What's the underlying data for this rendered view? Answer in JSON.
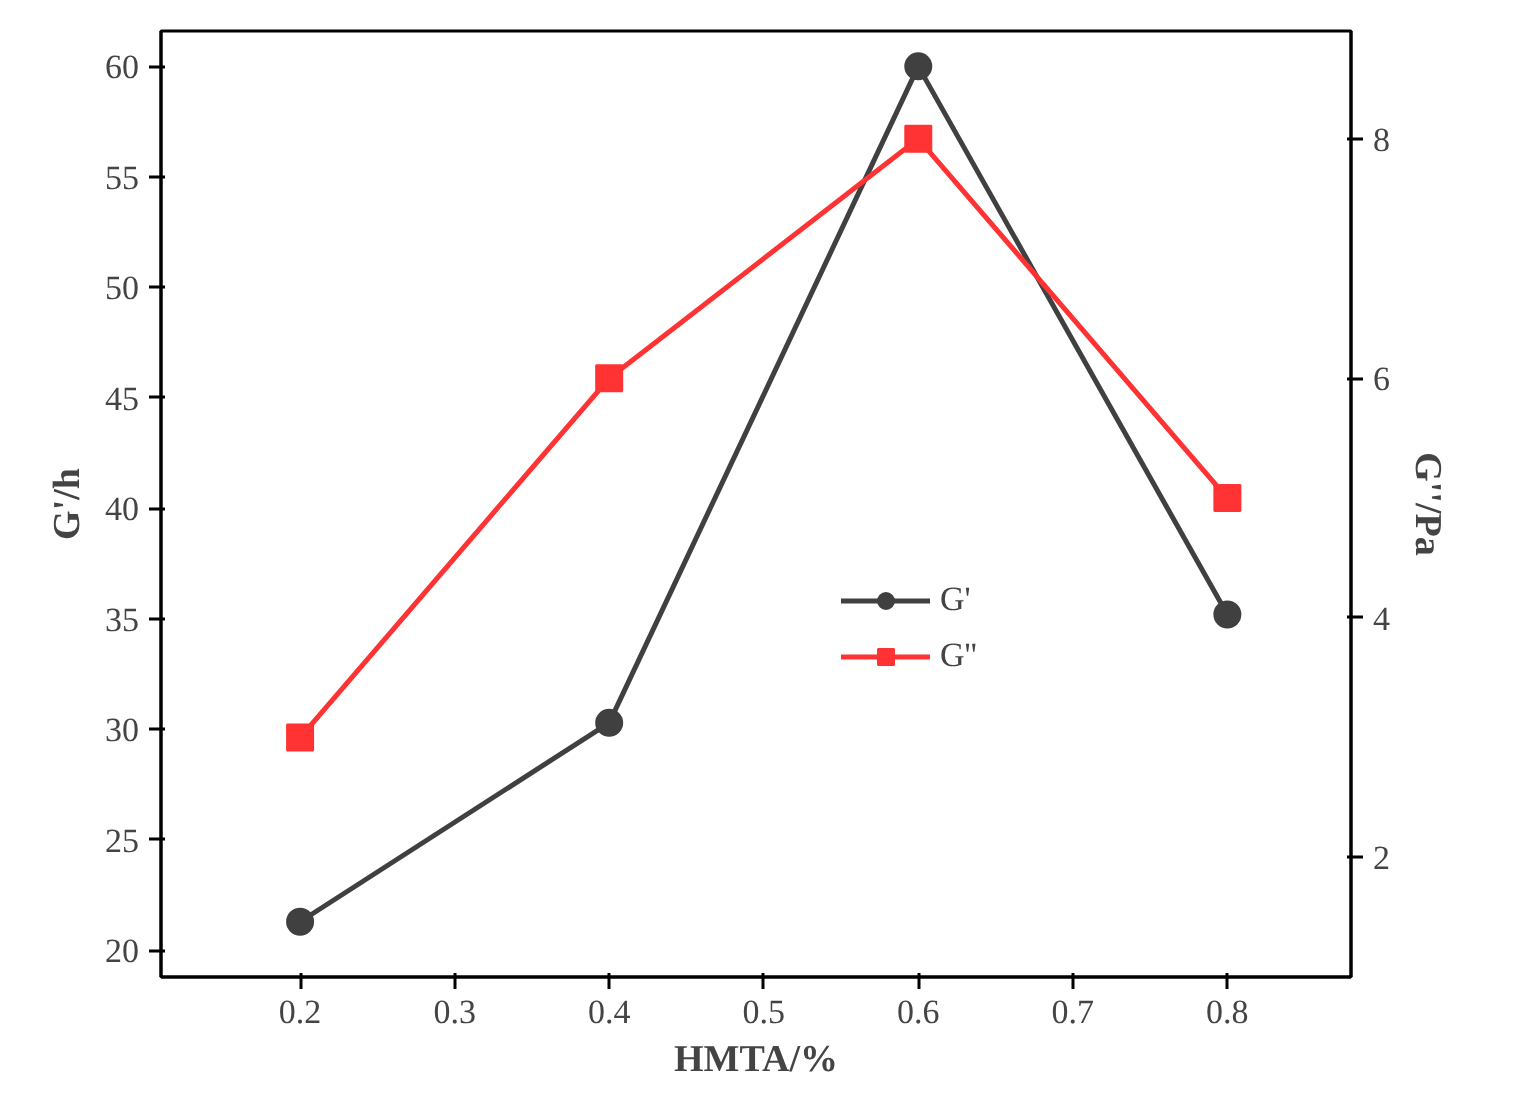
{
  "chart_data": {
    "type": "line",
    "xlabel": "HMTA/%",
    "ylabel": "G'/h",
    "y2label": "G''/Pa",
    "x": [
      0.2,
      0.4,
      0.6,
      0.8
    ],
    "series": [
      {
        "name": "G'",
        "color": "#404040",
        "values": [
          21.3,
          30.3,
          60.0,
          35.2
        ],
        "marker": "circle"
      },
      {
        "name": "G''",
        "color": "#ff3333",
        "values": [
          3.0,
          6.0,
          8.0,
          5.0
        ],
        "marker": "square",
        "axis": "y2"
      }
    ],
    "xlim": [
      0.11,
      0.88
    ],
    "xticks": [
      0.2,
      0.3,
      0.4,
      0.5,
      0.6,
      0.7,
      0.8
    ],
    "ylim": [
      18.8,
      61.6
    ],
    "yticks": [
      20,
      25,
      30,
      35,
      40,
      45,
      50,
      55,
      60
    ],
    "y2lim": [
      1.0,
      8.9
    ],
    "y2ticks": [
      2,
      4,
      6,
      8
    ],
    "legend": "right",
    "grid": false
  }
}
